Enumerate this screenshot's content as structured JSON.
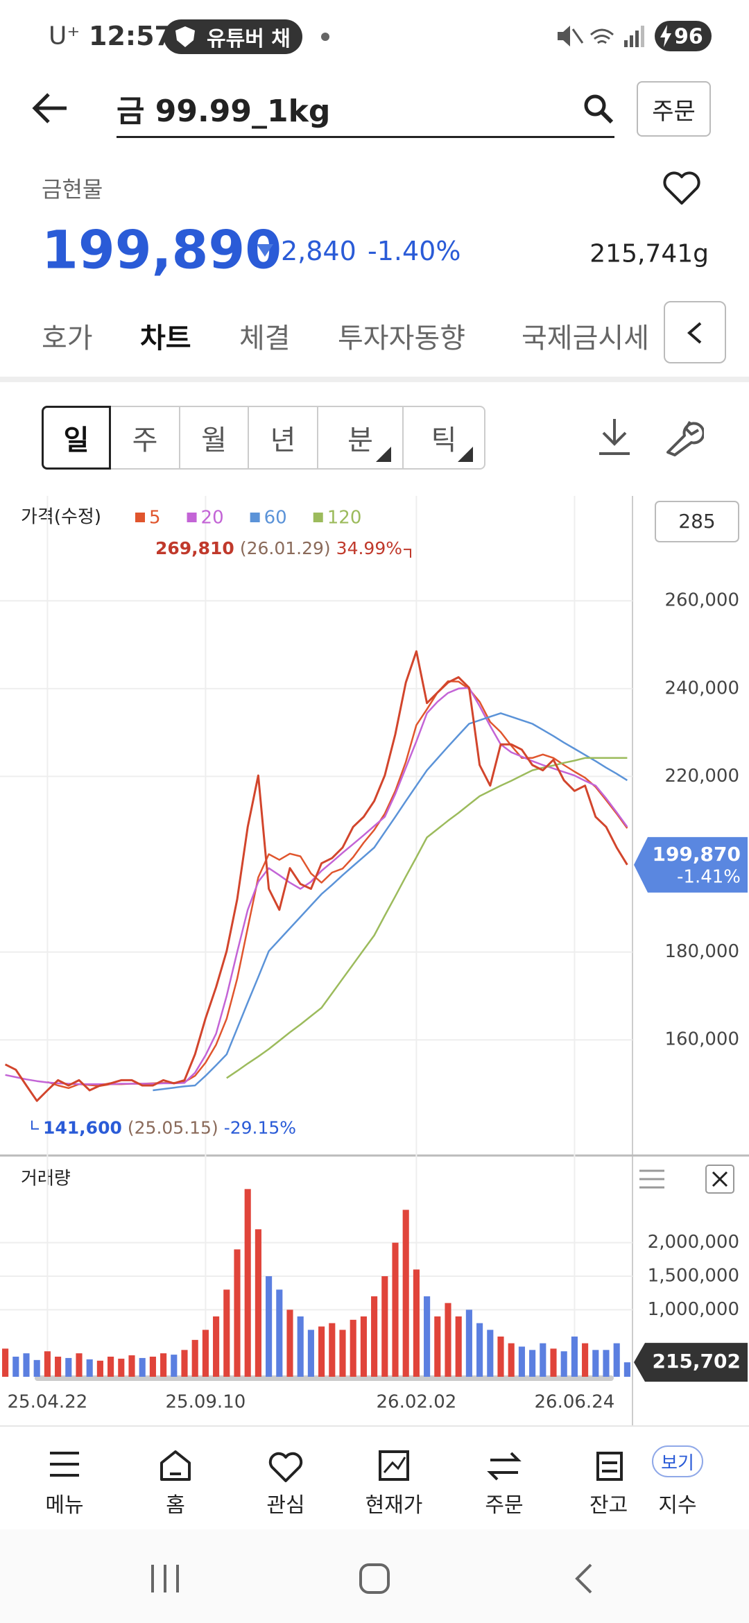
{
  "status_bar": {
    "carrier": "U⁺",
    "time": "12:57",
    "notification": "유튜버 채",
    "battery": 96
  },
  "header": {
    "title": "금 99.99_1kg",
    "order_button": "주문"
  },
  "quote": {
    "category": "금현물",
    "price": "199,890",
    "change": "2,840",
    "change_rate": "-1.40%",
    "volume": "215,741g"
  },
  "tabs": [
    "호가",
    "차트",
    "체결",
    "투자자동향",
    "국제금시세"
  ],
  "periods": [
    "일",
    "주",
    "월",
    "년",
    "분",
    "틱"
  ],
  "chart_data": [
    {
      "type": "line",
      "title": "가격(수정)",
      "color": "#d2452c",
      "values": [
        154400,
        153200,
        149600,
        146100,
        148500,
        150800,
        149600,
        150800,
        148500,
        149600,
        150100,
        150800,
        150800,
        149600,
        149600,
        150800,
        150100,
        150800,
        156700,
        164900,
        172000,
        180200,
        192000,
        208500,
        220200,
        194400,
        189600,
        199100,
        195500,
        194400,
        200200,
        201400,
        203800,
        208500,
        210800,
        214400,
        220200,
        229600,
        241400,
        248500,
        236700,
        239100,
        241400,
        242600,
        240200,
        222600,
        217900,
        227300,
        227300,
        226100,
        222600,
        221400,
        223800,
        219100,
        216700,
        217900,
        210800,
        208500,
        203800,
        199870
      ],
      "series": [
        {
          "name": "5",
          "color": "#e0552d",
          "values": [
            null,
            null,
            null,
            null,
            150400,
            149600,
            149000,
            149900,
            149700,
            149500,
            149900,
            149900,
            150000,
            150000,
            150100,
            150200,
            150200,
            150400,
            151800,
            154800,
            158900,
            164800,
            173900,
            185500,
            197000,
            202300,
            201000,
            202400,
            201800,
            197900,
            195800,
            198100,
            199000,
            201600,
            204900,
            207800,
            211500,
            216700,
            223300,
            231700,
            235300,
            239100,
            241700,
            241600,
            239900,
            237000,
            232400,
            230100,
            227000,
            224200,
            224200,
            225000,
            224200,
            222600,
            221100,
            219700,
            217600,
            214600,
            211500,
            208200
          ]
        },
        {
          "name": "20",
          "color": "#c364d6",
          "values": [
            152000,
            151500,
            151000,
            150600,
            150300,
            150100,
            150000,
            149900,
            149900,
            149900,
            149900,
            150000,
            150000,
            150000,
            150000,
            150100,
            150100,
            150200,
            152500,
            156500,
            161400,
            170000,
            180000,
            189600,
            196000,
            199100,
            197500,
            195800,
            194400,
            196000,
            198500,
            200500,
            202600,
            204600,
            206600,
            208700,
            210800,
            216000,
            222000,
            228000,
            234400,
            237000,
            239000,
            240000,
            240200,
            236000,
            231500,
            227300,
            225500,
            224500,
            223500,
            222600,
            221800,
            221000,
            220200,
            219000,
            217900,
            215000,
            211800,
            208500
          ]
        },
        {
          "name": "60",
          "color": "#5b93d8",
          "values": [
            null,
            null,
            null,
            null,
            null,
            null,
            null,
            null,
            null,
            null,
            null,
            null,
            null,
            null,
            148500,
            148800,
            149100,
            149400,
            149600,
            151800,
            154200,
            156700,
            162600,
            168500,
            174300,
            180200,
            182800,
            185400,
            188000,
            190600,
            193200,
            195300,
            197500,
            199600,
            201700,
            203800,
            207300,
            210800,
            214400,
            217900,
            221400,
            224100,
            226800,
            229400,
            232000,
            232800,
            233600,
            234400,
            233600,
            232800,
            232000,
            230600,
            229200,
            227700,
            226300,
            224900,
            223500,
            222000,
            220600,
            219100
          ]
        },
        {
          "name": "120",
          "color": "#9cbb5c",
          "values": [
            null,
            null,
            null,
            null,
            null,
            null,
            null,
            null,
            null,
            null,
            null,
            null,
            null,
            null,
            null,
            null,
            null,
            null,
            null,
            null,
            null,
            151300,
            152900,
            154600,
            156200,
            157900,
            159800,
            161700,
            163500,
            165400,
            167300,
            170600,
            173900,
            177200,
            180500,
            183800,
            188300,
            192700,
            197200,
            201600,
            206100,
            208000,
            209900,
            211700,
            213600,
            215500,
            216700,
            217900,
            219000,
            220200,
            221400,
            222000,
            222500,
            223100,
            223600,
            224200,
            224200,
            224200,
            224200,
            224200
          ]
        }
      ],
      "ylim": [
        133650,
        283890
      ],
      "yticks": [
        {
          "value": 160000,
          "label": "160,000"
        },
        {
          "value": 180000,
          "label": "180,000"
        },
        {
          "value": 220000,
          "label": "220,000"
        },
        {
          "value": 240000,
          "label": "240,000"
        },
        {
          "value": 260000,
          "label": "260,000"
        }
      ],
      "grid": true,
      "visible_bars": "285",
      "max_label": {
        "value": 269810,
        "label": "269,810",
        "date": "(26.01.29)",
        "change": "34.99%"
      },
      "min_label": {
        "value": 141600,
        "label": "141,600",
        "date": "(25.05.15)",
        "change": "-29.15%"
      },
      "last_label": {
        "value": 199870,
        "label": "199,870",
        "change": "-1.41%"
      }
    },
    {
      "type": "bar",
      "title": "거래량",
      "up_color": "#e0443a",
      "down_color": "#5b7fe0",
      "categories": [
        null,
        null,
        null,
        null,
        "25.04.22",
        null,
        null,
        null,
        null,
        null,
        null,
        null,
        null,
        null,
        null,
        null,
        null,
        null,
        null,
        "25.09.10",
        null,
        null,
        null,
        null,
        null,
        null,
        null,
        null,
        null,
        null,
        null,
        null,
        null,
        null,
        null,
        null,
        null,
        null,
        null,
        "26.02.02",
        null,
        null,
        null,
        null,
        null,
        null,
        null,
        null,
        null,
        null,
        null,
        null,
        null,
        null,
        "26.06.24",
        null,
        null,
        null,
        null,
        null
      ],
      "values": [
        420000,
        300000,
        350000,
        250000,
        380000,
        300000,
        280000,
        350000,
        260000,
        240000,
        300000,
        270000,
        320000,
        280000,
        300000,
        350000,
        330000,
        400000,
        550000,
        700000,
        900000,
        1300000,
        1900000,
        2800000,
        2200000,
        1500000,
        1300000,
        1000000,
        900000,
        700000,
        750000,
        800000,
        700000,
        850000,
        900000,
        1200000,
        1500000,
        2000000,
        2490000,
        1600000,
        1200000,
        900000,
        1100000,
        900000,
        1000000,
        800000,
        700000,
        600000,
        500000,
        450000,
        400000,
        500000,
        420000,
        380000,
        600000,
        500000,
        400000,
        400000,
        500000,
        215702
      ],
      "ylim": [
        0,
        3300000
      ],
      "yticks": [
        {
          "value": 1000000,
          "label": "1,000,000"
        },
        {
          "value": 1500000,
          "label": "1,500,000"
        },
        {
          "value": 2000000,
          "label": "2,000,000"
        }
      ],
      "grid": true,
      "last_label": {
        "value": 215702,
        "label": "215,702"
      }
    }
  ],
  "bottom_nav": {
    "items": [
      "메뉴",
      "홈",
      "관심",
      "현재가",
      "주문",
      "잔고",
      "지수"
    ],
    "badge": "보기"
  }
}
